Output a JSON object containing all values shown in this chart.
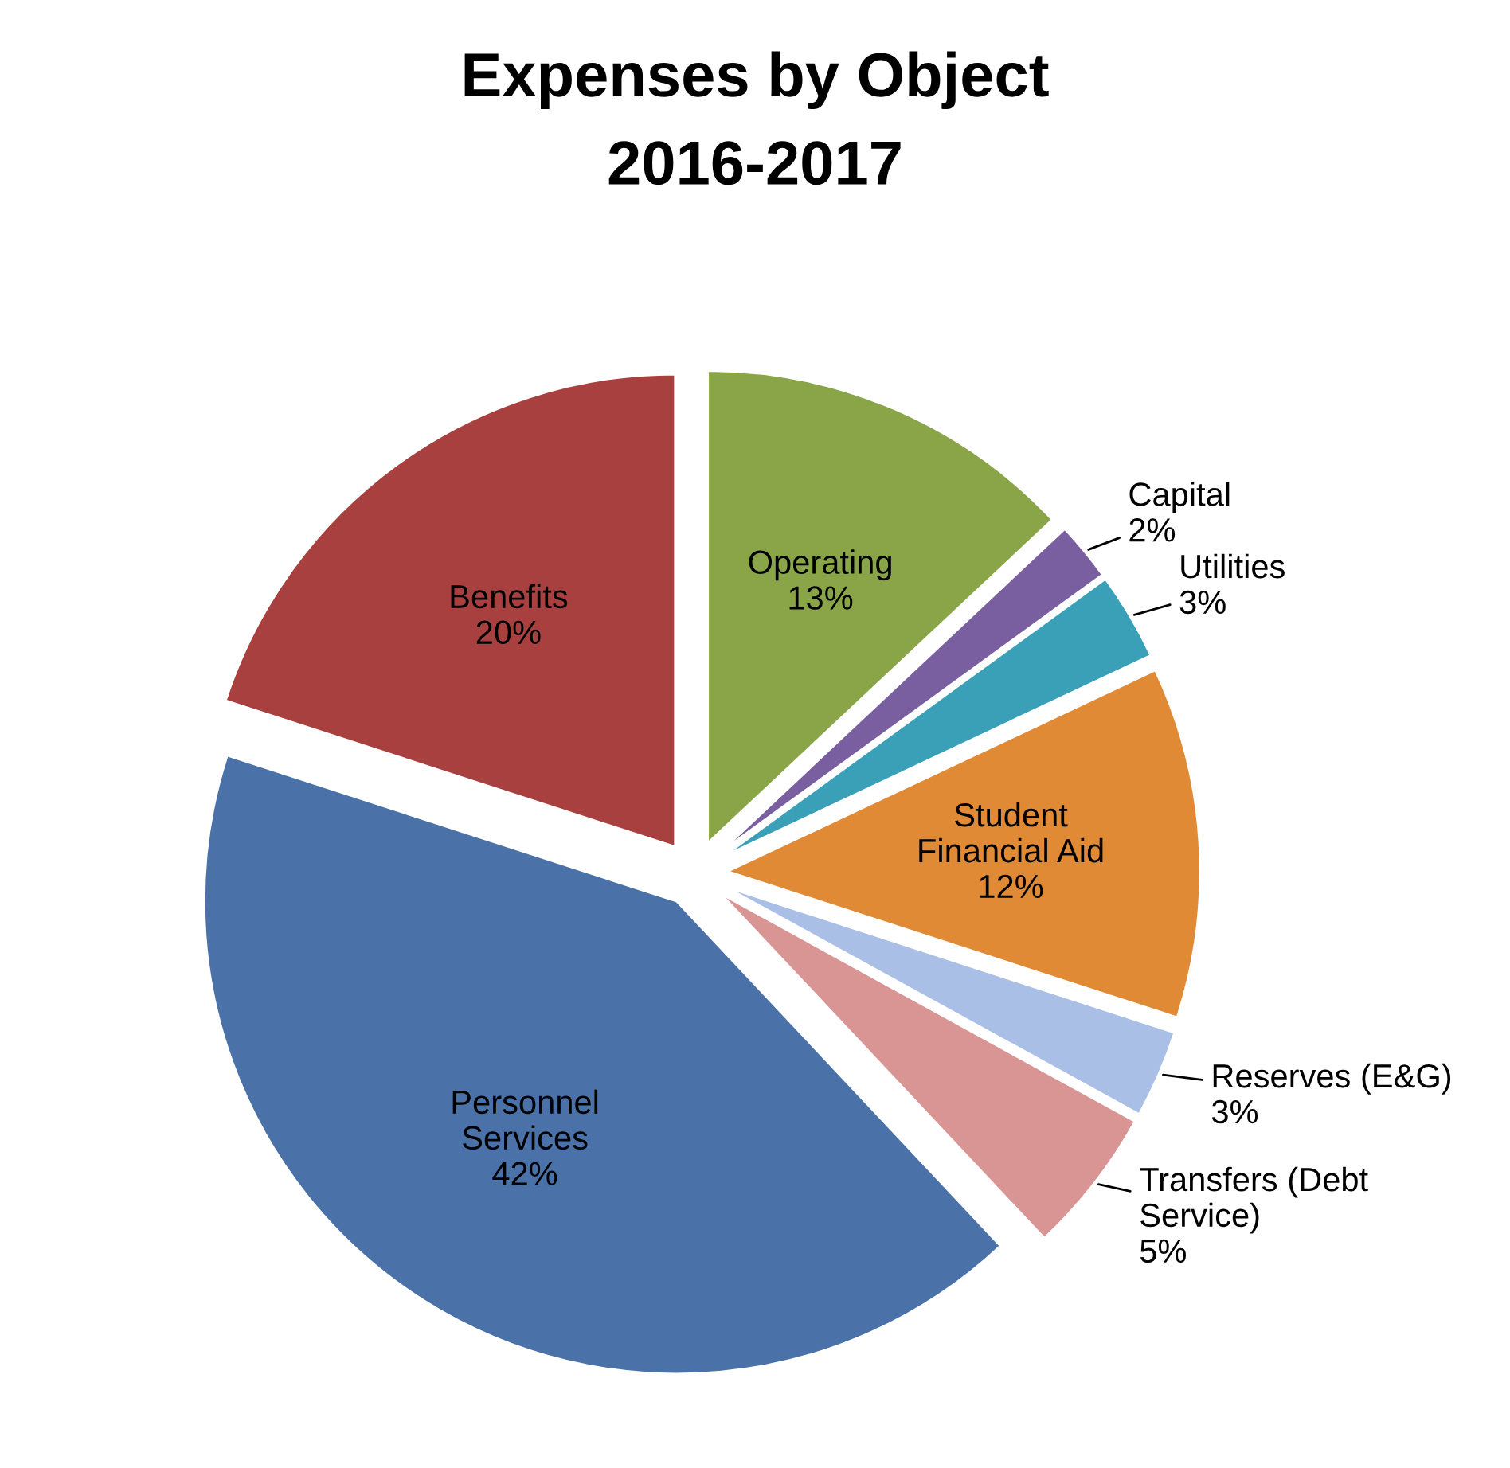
{
  "chart_data": {
    "type": "pie",
    "title": "Expenses by Object",
    "subtitle": "2016-2017",
    "categories": [
      "Operating",
      "Capital",
      "Utilities",
      "Student Financial Aid",
      "Reserves (E&G)",
      "Transfers (Debt Service)",
      "Personnel Services",
      "Benefits"
    ],
    "values": [
      13,
      2,
      3,
      12,
      3,
      5,
      42,
      20
    ],
    "value_labels": [
      "13%",
      "2%",
      "3%",
      "12%",
      "3%",
      "5%",
      "42%",
      "20%"
    ],
    "colors": [
      "#8aa548",
      "#7a5fa0",
      "#3aa0b8",
      "#e08a35",
      "#a9bfe6",
      "#d99594",
      "#4a72a8",
      "#a94040"
    ],
    "legend": false
  }
}
